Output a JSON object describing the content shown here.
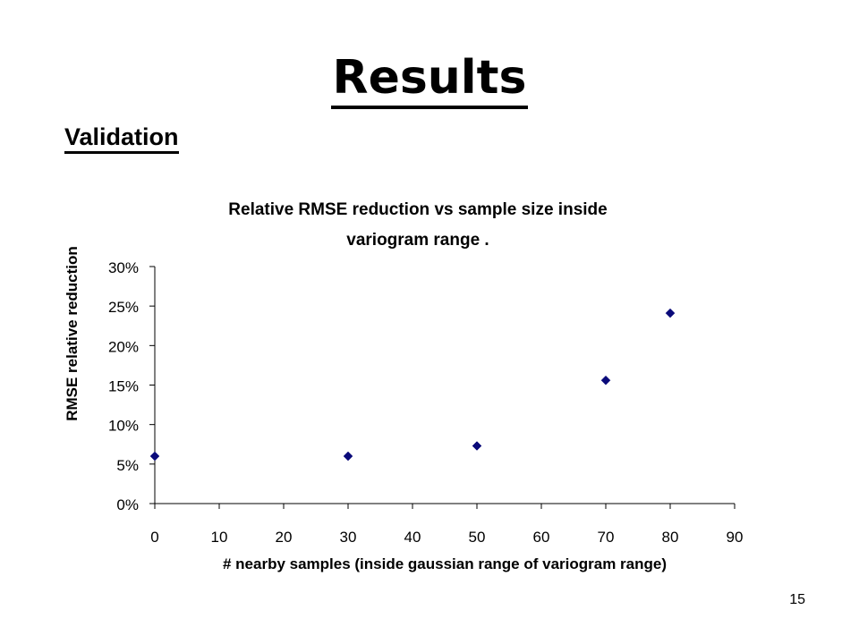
{
  "slide": {
    "title": "Results",
    "section": "Validation",
    "page_number": "15"
  },
  "colors": {
    "marker": "#0a0a7a",
    "axis": "#000000",
    "text": "#000000",
    "background": "#ffffff"
  },
  "chart_data": {
    "type": "scatter",
    "title_lines": [
      "Relative RMSE reduction vs sample size inside",
      "variogram range ."
    ],
    "xlabel": "# nearby samples (inside gaussian range of variogram range)",
    "ylabel": "RMSE relative reduction",
    "xlim": [
      0,
      90
    ],
    "ylim": [
      0,
      0.3
    ],
    "x_ticks": [
      0,
      10,
      20,
      30,
      40,
      50,
      60,
      70,
      80,
      90
    ],
    "x_tick_labels": [
      "0",
      "10",
      "20",
      "30",
      "40",
      "50",
      "60",
      "70",
      "80",
      "90"
    ],
    "y_ticks": [
      0,
      0.05,
      0.1,
      0.15,
      0.2,
      0.25,
      0.3
    ],
    "y_tick_labels": [
      "0%",
      "5%",
      "10%",
      "15%",
      "20%",
      "25%",
      "30%"
    ],
    "grid": false,
    "legend": "none",
    "marker": "diamond",
    "points": [
      {
        "x": 0,
        "y": 0.06
      },
      {
        "x": 30,
        "y": 0.06
      },
      {
        "x": 50,
        "y": 0.073
      },
      {
        "x": 70,
        "y": 0.156
      },
      {
        "x": 80,
        "y": 0.241
      }
    ]
  }
}
